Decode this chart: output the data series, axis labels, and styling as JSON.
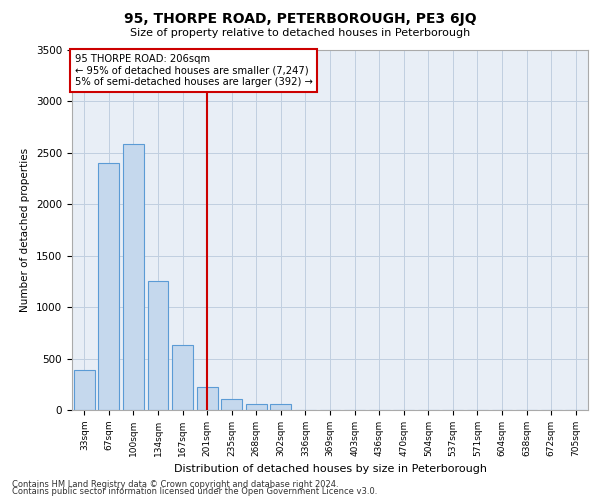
{
  "title1": "95, THORPE ROAD, PETERBOROUGH, PE3 6JQ",
  "title2": "Size of property relative to detached houses in Peterborough",
  "xlabel": "Distribution of detached houses by size in Peterborough",
  "ylabel": "Number of detached properties",
  "categories": [
    "33sqm",
    "67sqm",
    "100sqm",
    "134sqm",
    "167sqm",
    "201sqm",
    "235sqm",
    "268sqm",
    "302sqm",
    "336sqm",
    "369sqm",
    "403sqm",
    "436sqm",
    "470sqm",
    "504sqm",
    "537sqm",
    "571sqm",
    "604sqm",
    "638sqm",
    "672sqm",
    "705sqm"
  ],
  "bar_values": [
    390,
    2400,
    2590,
    1250,
    630,
    220,
    110,
    60,
    55,
    0,
    0,
    0,
    0,
    0,
    0,
    0,
    0,
    0,
    0,
    0,
    0
  ],
  "bar_color": "#c5d8ed",
  "bar_edge_color": "#5b9bd5",
  "vline_x": 5.0,
  "vline_color": "#cc0000",
  "ylim": [
    0,
    3500
  ],
  "yticks": [
    0,
    500,
    1000,
    1500,
    2000,
    2500,
    3000,
    3500
  ],
  "annotation_title": "95 THORPE ROAD: 206sqm",
  "annotation_line1": "← 95% of detached houses are smaller (7,247)",
  "annotation_line2": "5% of semi-detached houses are larger (392) →",
  "annotation_box_color": "#ffffff",
  "annotation_box_edge": "#cc0000",
  "grid_color": "#c0cfe0",
  "bg_color": "#e8eef6",
  "footnote1": "Contains HM Land Registry data © Crown copyright and database right 2024.",
  "footnote2": "Contains public sector information licensed under the Open Government Licence v3.0."
}
